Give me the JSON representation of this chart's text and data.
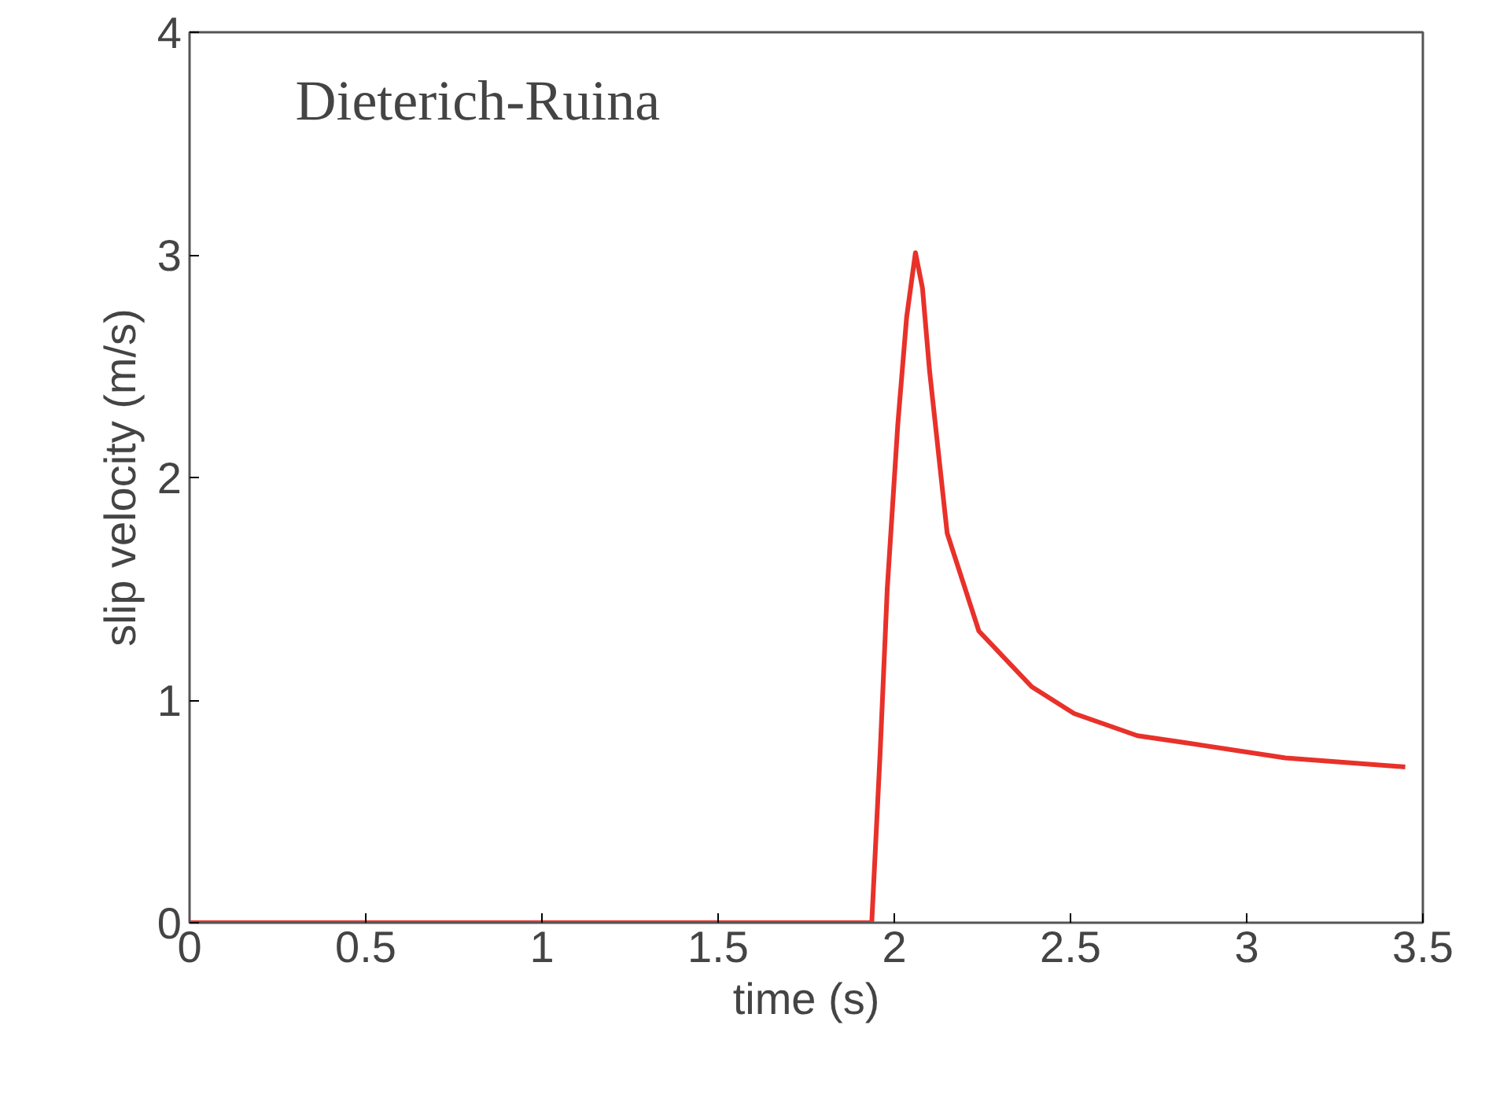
{
  "chart_data": {
    "type": "line",
    "xlabel": "time (s)",
    "ylabel": "slip velocity (m/s)",
    "annotations": [
      "Dieterich-Ruina"
    ],
    "xlim": [
      0,
      3.5
    ],
    "ylim": [
      0,
      4
    ],
    "xticks": [
      0,
      0.5,
      1,
      1.5,
      2,
      2.5,
      3,
      3.5
    ],
    "yticks": [
      0,
      1,
      2,
      3,
      4
    ],
    "series": [
      {
        "color": "#e8312a",
        "x": [
          0,
          0.5,
          1,
          1.5,
          1.936,
          1.96,
          1.98,
          2.01,
          2.035,
          2.06,
          2.08,
          2.1,
          2.15,
          2.24,
          2.39,
          2.51,
          2.69,
          2.82,
          3.11,
          3.45
        ],
        "values": [
          0,
          0,
          0,
          0,
          0,
          0.77,
          1.5,
          2.24,
          2.72,
          3.01,
          2.85,
          2.48,
          1.75,
          1.31,
          1.06,
          0.94,
          0.84,
          0.81,
          0.74,
          0.7
        ]
      }
    ]
  }
}
